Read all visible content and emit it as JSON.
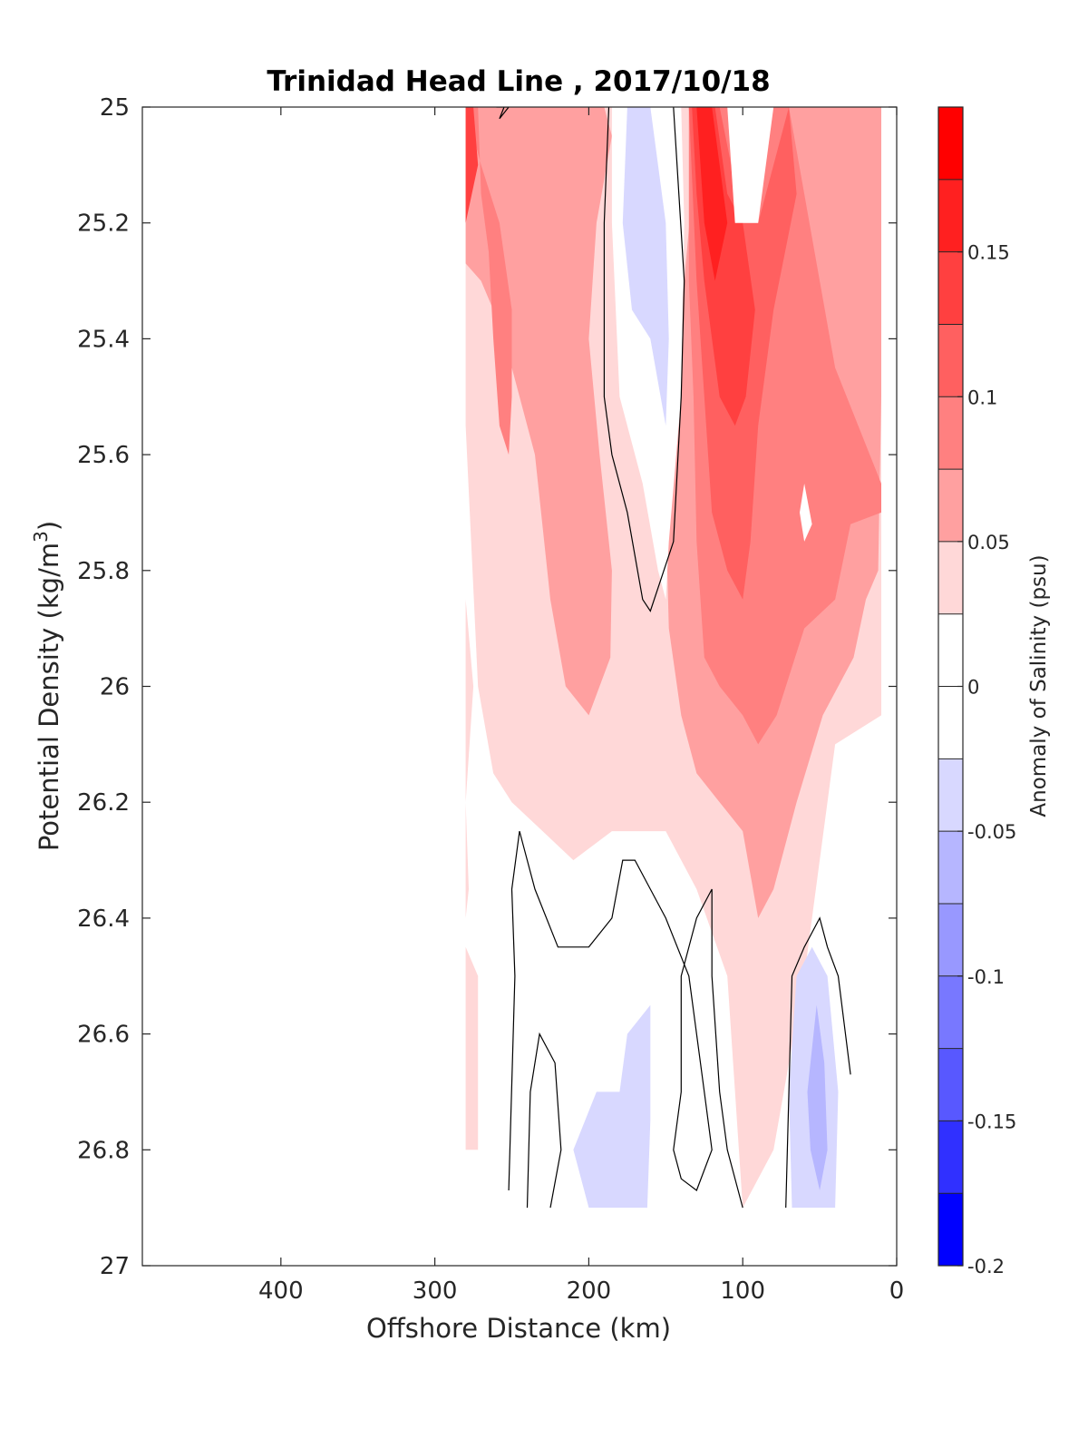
{
  "chart_data": {
    "type": "contour",
    "title": "Trinidad Head Line , 2017/10/18",
    "xlabel": "Offshore Distance (km)",
    "ylabel_base": "Potential Density (kg/m",
    "ylabel_sup": "3",
    "ylabel_end": ")",
    "x_reversed": true,
    "xlim": [
      0,
      490
    ],
    "ylim": [
      25,
      27
    ],
    "y_reversed": true,
    "xticks": [
      400,
      300,
      200,
      100,
      0
    ],
    "yticks": [
      25,
      25.2,
      25.4,
      25.6,
      25.8,
      26,
      26.2,
      26.4,
      26.6,
      26.8,
      27
    ],
    "colorbar": {
      "label": "Anomaly of Salinity (psu)",
      "range": [
        -0.2,
        0.2
      ],
      "ticks": [
        0.15,
        0.1,
        0.05,
        0,
        -0.05,
        -0.1,
        -0.15,
        -0.2
      ],
      "levels": [
        {
          "min": 0.175,
          "max": 0.2,
          "color": "#ff0000"
        },
        {
          "min": 0.15,
          "max": 0.175,
          "color": "#ff2020"
        },
        {
          "min": 0.125,
          "max": 0.15,
          "color": "#ff4040"
        },
        {
          "min": 0.1,
          "max": 0.125,
          "color": "#ff6060"
        },
        {
          "min": 0.075,
          "max": 0.1,
          "color": "#ff8080"
        },
        {
          "min": 0.05,
          "max": 0.075,
          "color": "#ffa0a0"
        },
        {
          "min": 0.025,
          "max": 0.05,
          "color": "#ffd8d8"
        },
        {
          "min": 0.0,
          "max": 0.025,
          "color": "#ffffff"
        },
        {
          "min": -0.025,
          "max": 0.0,
          "color": "#ffffff"
        },
        {
          "min": -0.05,
          "max": -0.025,
          "color": "#d8d8ff"
        },
        {
          "min": -0.075,
          "max": -0.05,
          "color": "#b6b6ff"
        },
        {
          "min": -0.1,
          "max": -0.075,
          "color": "#9898ff"
        },
        {
          "min": -0.125,
          "max": -0.1,
          "color": "#7878ff"
        },
        {
          "min": -0.15,
          "max": -0.125,
          "color": "#5858ff"
        },
        {
          "min": -0.175,
          "max": -0.15,
          "color": "#3030ff"
        },
        {
          "min": -0.2,
          "max": -0.175,
          "color": "#0000ff"
        }
      ]
    },
    "regions": [
      {
        "anomaly_band": [
          0.025,
          0.05
        ],
        "color": "#ffd8d8",
        "points": [
          [
            280,
            25
          ],
          [
            10,
            25
          ],
          [
            10,
            26.05
          ],
          [
            40,
            26.1
          ],
          [
            60,
            26.5
          ],
          [
            80,
            26.8
          ],
          [
            100,
            26.9
          ],
          [
            110,
            26.5
          ],
          [
            130,
            26.35
          ],
          [
            150,
            26.25
          ],
          [
            185,
            26.25
          ],
          [
            210,
            26.3
          ],
          [
            230,
            26.25
          ],
          [
            250,
            26.2
          ],
          [
            262,
            26.15
          ],
          [
            272,
            26.0
          ],
          [
            280,
            25.55
          ]
        ]
      },
      {
        "anomaly_band": [
          0.025,
          0.05
        ],
        "color": "#ffd8d8",
        "points": [
          [
            280,
            25.85
          ],
          [
            275,
            26.0
          ],
          [
            280,
            26.2
          ],
          [
            278,
            26.35
          ],
          [
            280,
            26.4
          ]
        ]
      },
      {
        "anomaly_band": [
          0.025,
          0.05
        ],
        "color": "#ffd8d8",
        "points": [
          [
            280,
            26.45
          ],
          [
            272,
            26.5
          ],
          [
            272,
            26.8
          ],
          [
            280,
            26.8
          ]
        ]
      },
      {
        "anomaly_band": [
          0.05,
          0.075
        ],
        "color": "#ffa0a0",
        "points": [
          [
            280,
            25
          ],
          [
            190,
            25
          ],
          [
            185,
            25.05
          ],
          [
            195,
            25.2
          ],
          [
            200,
            25.4
          ],
          [
            193,
            25.6
          ],
          [
            185,
            25.8
          ],
          [
            186,
            25.95
          ],
          [
            200,
            26.05
          ],
          [
            215,
            26.0
          ],
          [
            225,
            25.85
          ],
          [
            235,
            25.6
          ],
          [
            250,
            25.45
          ],
          [
            262,
            25.35
          ],
          [
            270,
            25.3
          ],
          [
            280,
            25.27
          ]
        ]
      },
      {
        "anomaly_band": [
          0.05,
          0.075
        ],
        "color": "#ffa0a0",
        "points": [
          [
            135,
            25
          ],
          [
            10,
            25
          ],
          [
            10,
            25.5
          ],
          [
            12,
            25.8
          ],
          [
            20,
            25.85
          ],
          [
            28,
            25.95
          ],
          [
            38,
            26.0
          ],
          [
            48,
            26.05
          ],
          [
            65,
            26.2
          ],
          [
            80,
            26.35
          ],
          [
            90,
            26.4
          ],
          [
            100,
            26.25
          ],
          [
            115,
            26.2
          ],
          [
            130,
            26.15
          ],
          [
            140,
            26.05
          ],
          [
            148,
            25.9
          ],
          [
            150,
            25.7
          ],
          [
            145,
            25.5
          ],
          [
            138,
            25.3
          ],
          [
            133,
            25.15
          ]
        ]
      },
      {
        "anomaly_band": [
          0.075,
          0.1
        ],
        "color": "#ff8080",
        "points": [
          [
            280,
            25
          ],
          [
            272,
            25
          ],
          [
            270,
            25.15
          ],
          [
            265,
            25.25
          ],
          [
            262,
            25.4
          ],
          [
            258,
            25.55
          ],
          [
            252,
            25.6
          ],
          [
            250,
            25.5
          ],
          [
            250,
            25.35
          ],
          [
            258,
            25.2
          ],
          [
            270,
            25.1
          ]
        ]
      },
      {
        "anomaly_band": [
          0.075,
          0.1
        ],
        "color": "#ff8080",
        "points": [
          [
            135,
            25
          ],
          [
            70,
            25
          ],
          [
            60,
            25.15
          ],
          [
            50,
            25.3
          ],
          [
            40,
            25.45
          ],
          [
            10,
            25.65
          ],
          [
            10,
            25.7
          ],
          [
            30,
            25.72
          ],
          [
            40,
            25.85
          ],
          [
            60,
            25.9
          ],
          [
            78,
            26.05
          ],
          [
            90,
            26.1
          ],
          [
            100,
            26.05
          ],
          [
            115,
            26.0
          ],
          [
            125,
            25.95
          ],
          [
            130,
            25.75
          ],
          [
            132,
            25.5
          ],
          [
            135,
            25.3
          ]
        ]
      },
      {
        "anomaly_band": [
          0.1,
          0.125
        ],
        "color": "#ff6060",
        "points": [
          [
            135,
            25
          ],
          [
            115,
            25
          ],
          [
            100,
            25.2
          ],
          [
            90,
            25.2
          ],
          [
            70,
            25
          ],
          [
            65,
            25.15
          ],
          [
            80,
            25.35
          ],
          [
            90,
            25.55
          ],
          [
            95,
            25.75
          ],
          [
            100,
            25.85
          ],
          [
            110,
            25.8
          ],
          [
            120,
            25.7
          ],
          [
            125,
            25.5
          ],
          [
            130,
            25.3
          ]
        ]
      },
      {
        "anomaly_band": [
          0.125,
          0.15
        ],
        "color": "#ff4040",
        "points": [
          [
            133,
            25
          ],
          [
            118,
            25
          ],
          [
            110,
            25.15
          ],
          [
            100,
            25.2
          ],
          [
            92,
            25.35
          ],
          [
            98,
            25.5
          ],
          [
            105,
            25.55
          ],
          [
            115,
            25.5
          ],
          [
            125,
            25.3
          ],
          [
            130,
            25.15
          ]
        ]
      },
      {
        "anomaly_band": [
          0.15,
          0.2
        ],
        "color": "#ff2020",
        "points": [
          [
            130,
            25
          ],
          [
            120,
            25
          ],
          [
            110,
            25.2
          ],
          [
            118,
            25.3
          ],
          [
            125,
            25.2
          ]
        ]
      },
      {
        "anomaly_band": [
          0.1,
          0.2
        ],
        "color": "#ff4040",
        "points": [
          [
            280,
            25
          ],
          [
            275,
            25
          ],
          [
            272,
            25.1
          ],
          [
            280,
            25.2
          ]
        ]
      },
      {
        "anomaly_band": [
          0.0,
          0.025
        ],
        "color": "#ffffff",
        "points": [
          [
            110,
            25.0
          ],
          [
            105,
            25.2
          ],
          [
            90,
            25.2
          ],
          [
            80,
            25.0
          ]
        ]
      },
      {
        "anomaly_band": [
          0.0,
          0.025
        ],
        "color": "#ffffff",
        "points": [
          [
            60,
            25.65
          ],
          [
            55,
            25.72
          ],
          [
            60,
            25.75
          ],
          [
            63,
            25.7
          ]
        ]
      },
      {
        "anomaly_band": [
          0.0,
          0.025
        ],
        "color": "#ffffff",
        "points": [
          [
            185,
            25
          ],
          [
            140,
            25
          ],
          [
            138,
            25.2
          ],
          [
            140,
            25.5
          ],
          [
            148,
            25.75
          ],
          [
            150,
            25.85
          ],
          [
            155,
            25.8
          ],
          [
            165,
            25.65
          ],
          [
            180,
            25.5
          ],
          [
            185,
            25.2
          ]
        ]
      },
      {
        "anomaly_band": [
          -0.05,
          -0.025
        ],
        "color": "#d8d8ff",
        "points": [
          [
            175,
            25
          ],
          [
            160,
            25
          ],
          [
            150,
            25.2
          ],
          [
            148,
            25.4
          ],
          [
            150,
            25.55
          ],
          [
            160,
            25.4
          ],
          [
            172,
            25.35
          ],
          [
            178,
            25.2
          ]
        ]
      },
      {
        "anomaly_band": [
          -0.05,
          -0.025
        ],
        "color": "#d8d8ff",
        "points": [
          [
            160,
            26.55
          ],
          [
            175,
            26.6
          ],
          [
            180,
            26.7
          ],
          [
            195,
            26.7
          ],
          [
            210,
            26.8
          ],
          [
            200,
            26.9
          ],
          [
            162,
            26.9
          ],
          [
            160,
            26.75
          ]
        ]
      },
      {
        "anomaly_band": [
          -0.05,
          -0.025
        ],
        "color": "#d8d8ff",
        "points": [
          [
            55,
            26.45
          ],
          [
            65,
            26.5
          ],
          [
            70,
            26.7
          ],
          [
            68,
            26.9
          ],
          [
            40,
            26.9
          ],
          [
            38,
            26.7
          ],
          [
            45,
            26.5
          ]
        ]
      },
      {
        "anomaly_band": [
          -0.075,
          -0.05
        ],
        "color": "#b6b6ff",
        "points": [
          [
            52,
            26.55
          ],
          [
            58,
            26.7
          ],
          [
            56,
            26.8
          ],
          [
            50,
            26.87
          ],
          [
            45,
            26.8
          ],
          [
            47,
            26.65
          ]
        ]
      }
    ],
    "zero_contours": [
      [
        [
          187,
          25
        ],
        [
          190,
          25.2
        ],
        [
          190,
          25.5
        ],
        [
          185,
          25.6
        ],
        [
          175,
          25.7
        ],
        [
          165,
          25.85
        ],
        [
          160,
          25.87
        ],
        [
          145,
          25.75
        ],
        [
          140,
          25.5
        ],
        [
          138,
          25.3
        ],
        [
          145,
          25.0
        ]
      ],
      [
        [
          260,
          25.0
        ],
        [
          252,
          25.0
        ],
        [
          258,
          25.02
        ],
        [
          255,
          25.0
        ]
      ],
      [
        [
          252,
          26.87
        ],
        [
          248,
          26.5
        ],
        [
          250,
          26.35
        ],
        [
          245,
          26.25
        ],
        [
          235,
          26.35
        ],
        [
          220,
          26.45
        ],
        [
          200,
          26.45
        ],
        [
          185,
          26.4
        ],
        [
          178,
          26.3
        ],
        [
          170,
          26.3
        ],
        [
          160,
          26.35
        ],
        [
          150,
          26.4
        ],
        [
          135,
          26.5
        ],
        [
          130,
          26.6
        ],
        [
          125,
          26.7
        ],
        [
          120,
          26.8
        ],
        [
          130,
          26.87
        ],
        [
          140,
          26.85
        ],
        [
          145,
          26.8
        ],
        [
          140,
          26.7
        ],
        [
          140,
          26.5
        ],
        [
          130,
          26.4
        ],
        [
          120,
          26.35
        ],
        [
          120,
          26.5
        ],
        [
          115,
          26.7
        ],
        [
          110,
          26.8
        ],
        [
          100,
          26.9
        ]
      ],
      [
        [
          240,
          26.9
        ],
        [
          238,
          26.7
        ],
        [
          232,
          26.6
        ],
        [
          222,
          26.65
        ],
        [
          218,
          26.8
        ],
        [
          225,
          26.9
        ]
      ],
      [
        [
          72,
          26.9
        ],
        [
          70,
          26.7
        ],
        [
          68,
          26.5
        ],
        [
          60,
          26.45
        ],
        [
          50,
          26.4
        ],
        [
          45,
          26.45
        ],
        [
          38,
          26.5
        ],
        [
          30,
          26.67
        ]
      ]
    ]
  }
}
